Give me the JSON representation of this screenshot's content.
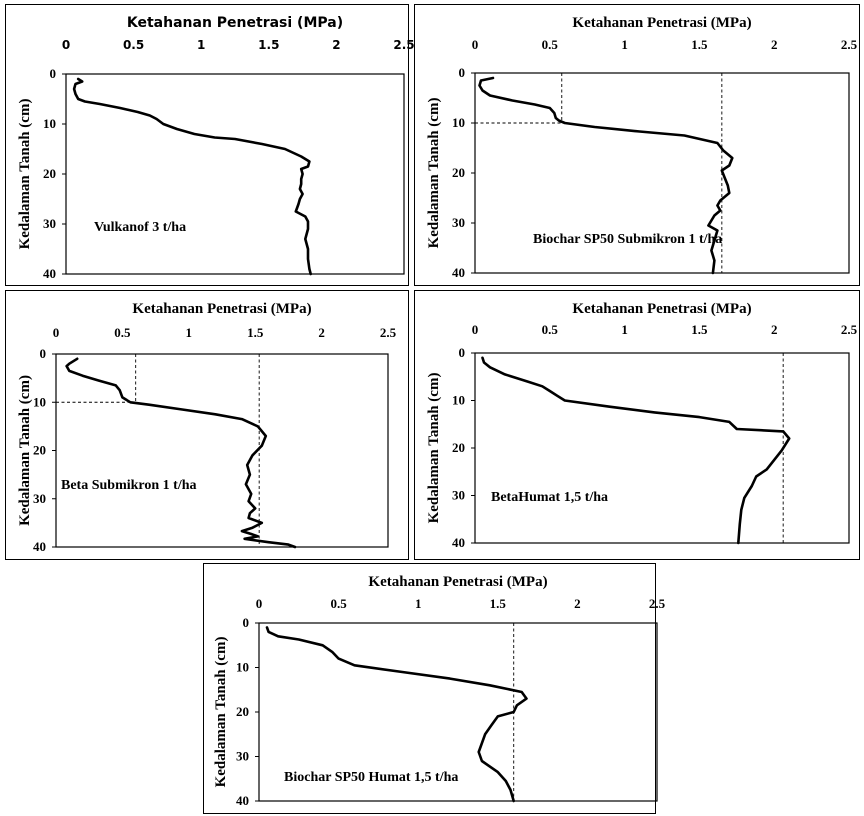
{
  "chart_data": [
    {
      "type": "line",
      "title": "Ketahanan Penetrasi (MPa)",
      "xlabel": "Ketahanan Penetrasi (MPa)",
      "ylabel": "Kedalaman Tanah (cm)",
      "xlim": [
        0,
        2.5
      ],
      "ylim": [
        40,
        0
      ],
      "x_ticks": [
        "0",
        "0.5",
        "1",
        "1.5",
        "2",
        "2.5"
      ],
      "y_ticks": [
        "0",
        "10",
        "20",
        "30",
        "40"
      ],
      "annotation": "Vulkanof 3 t/ha",
      "reference_lines": [],
      "series": [
        {
          "x": [
            0.09,
            0.12,
            0.07,
            0.06,
            0.07,
            0.09,
            0.14,
            0.25,
            0.4,
            0.53,
            0.62,
            0.67,
            0.72,
            0.82,
            0.95,
            1.1,
            1.25,
            1.45,
            1.62,
            1.74,
            1.8,
            1.79,
            1.74,
            1.75,
            1.74,
            1.74,
            1.73,
            1.75,
            1.73,
            1.72,
            1.7,
            1.77,
            1.79,
            1.79,
            1.77,
            1.79,
            1.79,
            1.8,
            1.81
          ],
          "y": [
            1,
            1.5,
            2,
            3,
            4,
            5,
            5.5,
            6,
            6.8,
            7.6,
            8.3,
            9,
            10,
            11,
            12,
            12.7,
            13,
            14,
            15,
            16.5,
            17.5,
            18.5,
            19,
            20,
            21,
            22,
            23,
            24,
            25,
            26,
            27.5,
            28.5,
            29.5,
            31,
            33,
            35,
            37,
            39,
            40
          ]
        }
      ]
    },
    {
      "type": "line",
      "title": "Ketahanan Penetrasi (MPa)",
      "xlabel": "Ketahanan Penetrasi (MPa)",
      "ylabel": "Kedalaman Tanah (cm)",
      "xlim": [
        0,
        2.5
      ],
      "ylim": [
        40,
        0
      ],
      "x_ticks": [
        "0",
        "0.5",
        "1",
        "1.5",
        "2",
        "2.5"
      ],
      "y_ticks": [
        "0",
        "10",
        "20",
        "30",
        "40"
      ],
      "annotation": "Biochar SP50 Submikron 1 t/ha",
      "reference_lines": [
        {
          "x": 0.58,
          "y_to": 10
        },
        {
          "x": 1.65,
          "y_to": 40
        }
      ],
      "series": [
        {
          "x": [
            0.12,
            0.04,
            0.03,
            0.05,
            0.1,
            0.25,
            0.4,
            0.5,
            0.53,
            0.54,
            0.56,
            0.6,
            0.8,
            1.1,
            1.4,
            1.62,
            1.66,
            1.72,
            1.7,
            1.65,
            1.67,
            1.69,
            1.7,
            1.64,
            1.62,
            1.64,
            1.6,
            1.58,
            1.56,
            1.62,
            1.6,
            1.58,
            1.6,
            1.59
          ],
          "y": [
            1,
            1.5,
            2.5,
            3.5,
            4.5,
            5.5,
            6.3,
            7,
            8,
            9,
            9.5,
            10,
            10.8,
            11.7,
            12.5,
            14,
            15.5,
            17,
            18.5,
            19.5,
            21,
            22.5,
            24,
            25.5,
            26.5,
            27.5,
            28.5,
            29.5,
            30.5,
            31.5,
            33.5,
            35.5,
            37.5,
            40
          ]
        }
      ]
    },
    {
      "type": "line",
      "title": "Ketahanan Penetrasi (MPa)",
      "xlabel": "Ketahanan Penetrasi (MPa)",
      "ylabel": "Kedalaman Tanah (cm)",
      "xlim": [
        0,
        2.5
      ],
      "ylim": [
        40,
        0
      ],
      "x_ticks": [
        "0",
        "0.5",
        "1",
        "1.5",
        "2",
        "2.5"
      ],
      "y_ticks": [
        "0",
        "10",
        "20",
        "30",
        "40"
      ],
      "annotation": "Beta Submikron 1 t/ha",
      "reference_lines": [
        {
          "x": 0.6,
          "y_to": 10
        },
        {
          "x": 1.53,
          "y_to": 40
        }
      ],
      "series": [
        {
          "x": [
            0.16,
            0.1,
            0.08,
            0.1,
            0.2,
            0.32,
            0.45,
            0.48,
            0.5,
            0.56,
            0.7,
            0.95,
            1.2,
            1.4,
            1.52,
            1.58,
            1.55,
            1.48,
            1.44,
            1.46,
            1.43,
            1.47,
            1.45,
            1.5,
            1.46,
            1.45,
            1.55,
            1.48,
            1.4,
            1.47,
            1.52,
            1.42,
            1.6,
            1.75,
            1.8
          ],
          "y": [
            1,
            2,
            2.5,
            3.5,
            4.5,
            5.5,
            6.5,
            7.5,
            9,
            10,
            10.5,
            11.5,
            12.5,
            13.5,
            15,
            17,
            19,
            21,
            23,
            25,
            27,
            29,
            30.5,
            32,
            33,
            34,
            35,
            36,
            36.7,
            37.3,
            37.8,
            38.3,
            39,
            39.5,
            40
          ]
        }
      ]
    },
    {
      "type": "line",
      "title": "Ketahanan Penetrasi (MPa)",
      "xlabel": "Ketahanan Penetrasi (MPa)",
      "ylabel": "Kedalaman Tanah (cm)",
      "xlim": [
        0,
        2.5
      ],
      "ylim": [
        40,
        0
      ],
      "x_ticks": [
        "0",
        "0.5",
        "1",
        "1.5",
        "2",
        "2.5"
      ],
      "y_ticks": [
        "0",
        "10",
        "20",
        "30",
        "40"
      ],
      "annotation": "BetaHumat 1,5 t/ha",
      "reference_lines": [
        {
          "x": 2.06,
          "y_to": 40
        }
      ],
      "series": [
        {
          "x": [
            0.05,
            0.06,
            0.1,
            0.2,
            0.35,
            0.45,
            0.5,
            0.55,
            0.6,
            0.9,
            1.2,
            1.5,
            1.7,
            1.75,
            2.06,
            2.1,
            2.05,
            2.0,
            1.95,
            1.88,
            1.85,
            1.8,
            1.78,
            1.77,
            1.76
          ],
          "y": [
            1,
            2,
            3,
            4.5,
            6,
            7,
            8,
            9,
            10,
            11.3,
            12.5,
            13.5,
            14.5,
            16,
            16.5,
            18,
            20.5,
            22.5,
            24.5,
            26,
            28,
            30.5,
            33,
            36,
            40
          ]
        }
      ]
    },
    {
      "type": "line",
      "title": "Ketahanan Penetrasi (MPa)",
      "xlabel": "Ketahanan Penetrasi (MPa)",
      "ylabel": "Kedalaman Tanah (cm)",
      "xlim": [
        0,
        2.5
      ],
      "ylim": [
        40,
        0
      ],
      "x_ticks": [
        "0",
        "0.5",
        "1",
        "1.5",
        "2",
        "2.5"
      ],
      "y_ticks": [
        "0",
        "10",
        "20",
        "30",
        "40"
      ],
      "annotation": "Biochar SP50 Humat 1,5 t/ha",
      "reference_lines": [
        {
          "x": 1.6,
          "y_to": 40
        }
      ],
      "series": [
        {
          "x": [
            0.05,
            0.06,
            0.12,
            0.25,
            0.4,
            0.46,
            0.5,
            0.6,
            0.9,
            1.2,
            1.45,
            1.65,
            1.68,
            1.62,
            1.6,
            1.5,
            1.46,
            1.42,
            1.4,
            1.38,
            1.4,
            1.5,
            1.55,
            1.58,
            1.6
          ],
          "y": [
            1,
            2,
            3,
            3.7,
            5,
            6.5,
            8,
            9.5,
            11,
            12.5,
            14,
            15.5,
            17,
            18.5,
            20,
            21,
            23,
            25,
            27,
            29,
            31,
            33.5,
            35.5,
            37.5,
            40
          ]
        }
      ]
    }
  ]
}
